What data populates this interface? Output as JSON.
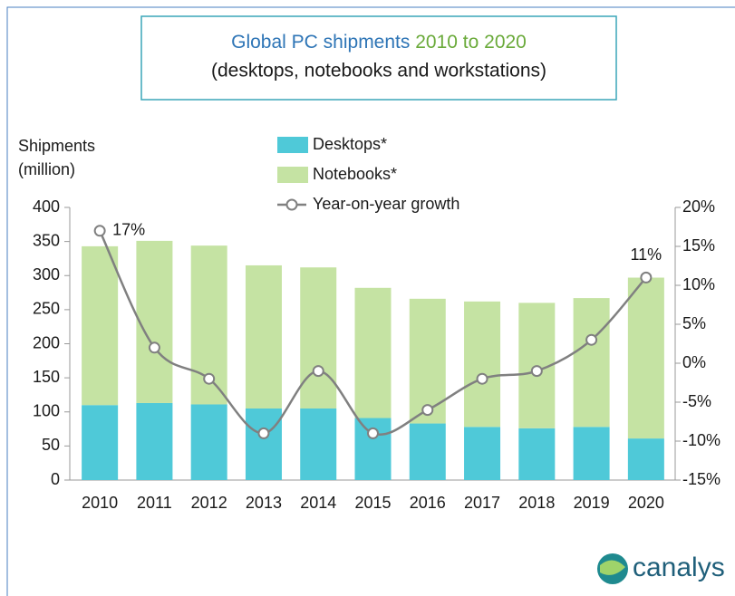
{
  "chart_data": {
    "type": "bar",
    "stacked": true,
    "title": "Global PC shipments",
    "title_years": "2010 to 2020",
    "subtitle": "(desktops, notebooks and workstations)",
    "ylabel": [
      "Shipments",
      "(million)"
    ],
    "categories": [
      "2010",
      "2011",
      "2012",
      "2013",
      "2014",
      "2015",
      "2016",
      "2017",
      "2018",
      "2019",
      "2020"
    ],
    "series": [
      {
        "name": "Desktops*",
        "color": "#4fc9d8",
        "values": [
          110,
          113,
          111,
          105,
          105,
          91,
          83,
          78,
          76,
          78,
          61
        ]
      },
      {
        "name": "Notebooks*",
        "color": "#c5e3a3",
        "values": [
          233,
          238,
          233,
          210,
          207,
          191,
          183,
          184,
          184,
          189,
          236
        ]
      },
      {
        "name": "Year-on-year growth",
        "color": "#808080",
        "type": "line",
        "axis": "y2",
        "values": [
          17,
          2,
          -2,
          -9,
          -1,
          -9,
          -6,
          -2,
          -1,
          3,
          11
        ],
        "value_labels": [
          "17%",
          null,
          null,
          null,
          null,
          null,
          null,
          null,
          null,
          null,
          "11%"
        ]
      }
    ],
    "ylim": [
      0,
      400
    ],
    "yticks": [
      0,
      50,
      100,
      150,
      200,
      250,
      300,
      350,
      400
    ],
    "y2lim": [
      -15,
      20
    ],
    "y2ticks": [
      {
        "value": -15,
        "label": "-15%"
      },
      {
        "value": -10,
        "label": "-10%"
      },
      {
        "value": -5,
        "label": "-5%"
      },
      {
        "value": 0,
        "label": "0%"
      },
      {
        "value": 5,
        "label": "5%"
      },
      {
        "value": 10,
        "label": "10%"
      },
      {
        "value": 15,
        "label": "15%"
      },
      {
        "value": 20,
        "label": "20%"
      }
    ],
    "logo": "canalys"
  }
}
